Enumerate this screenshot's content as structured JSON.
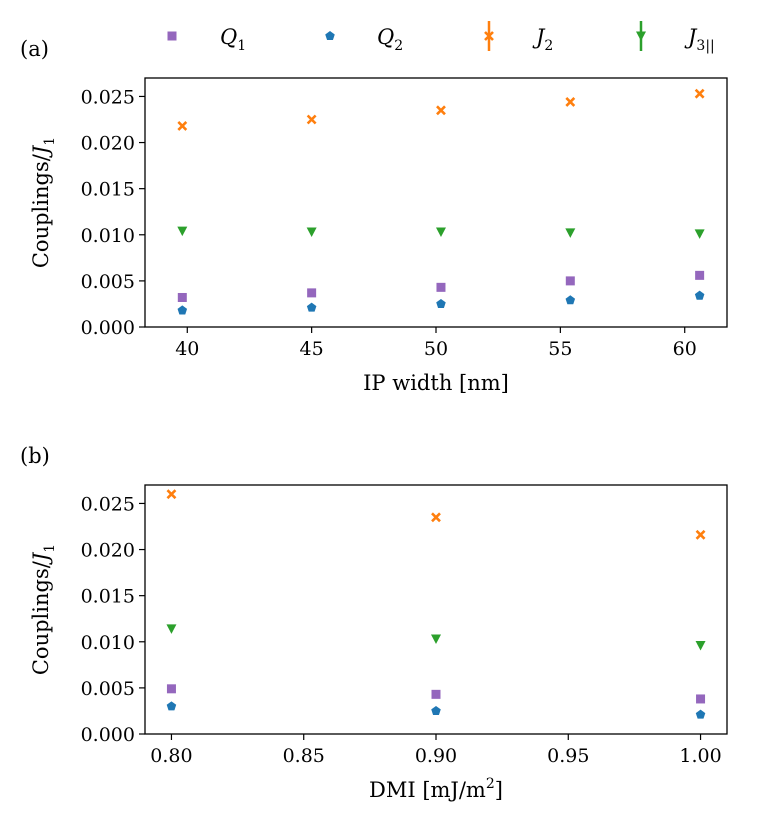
{
  "chart_data": [
    {
      "type": "scatter",
      "panel_label": "(a)",
      "xlabel": "IP width [nm]",
      "ylabel": "Couplings/J1",
      "xlim": [
        38.3,
        61.7
      ],
      "ylim": [
        0.0,
        0.027
      ],
      "xticks": [
        40,
        45,
        50,
        55,
        60
      ],
      "xtick_labels": [
        "40",
        "45",
        "50",
        "55",
        "60"
      ],
      "yticks": [
        0.0,
        0.005,
        0.01,
        0.015,
        0.02,
        0.025
      ],
      "ytick_labels": [
        "0.000",
        "0.005",
        "0.010",
        "0.015",
        "0.020",
        "0.025"
      ],
      "x": [
        39.8,
        45.0,
        50.2,
        55.4,
        60.6
      ],
      "series": [
        {
          "name": "Q1",
          "marker": "square",
          "color": "#9467bd",
          "values": [
            0.0032,
            0.0037,
            0.0043,
            0.005,
            0.0056
          ]
        },
        {
          "name": "Q2",
          "marker": "pentagon",
          "color": "#1f77b4",
          "values": [
            0.0018,
            0.0021,
            0.0025,
            0.0029,
            0.0034
          ]
        },
        {
          "name": "J2",
          "marker": "x",
          "color": "#ff7f0e",
          "values": [
            0.0218,
            0.0225,
            0.0235,
            0.0244,
            0.0253
          ]
        },
        {
          "name": "J3||",
          "marker": "triangle-down",
          "color": "#2ca02c",
          "values": [
            0.0104,
            0.0103,
            0.0103,
            0.0102,
            0.0101
          ]
        }
      ]
    },
    {
      "type": "scatter",
      "panel_label": "(b)",
      "xlabel": "DMI [mJ/m2]",
      "ylabel": "Couplings/J1",
      "xlim": [
        0.79,
        1.01
      ],
      "ylim": [
        0.0,
        0.027
      ],
      "xticks": [
        0.8,
        0.85,
        0.9,
        0.95,
        1.0
      ],
      "xtick_labels": [
        "0.80",
        "0.85",
        "0.90",
        "0.95",
        "1.00"
      ],
      "yticks": [
        0.0,
        0.005,
        0.01,
        0.015,
        0.02,
        0.025
      ],
      "ytick_labels": [
        "0.000",
        "0.005",
        "0.010",
        "0.015",
        "0.020",
        "0.025"
      ],
      "x": [
        0.8,
        0.9,
        1.0
      ],
      "series": [
        {
          "name": "Q1",
          "marker": "square",
          "color": "#9467bd",
          "values": [
            0.0049,
            0.0043,
            0.0038
          ]
        },
        {
          "name": "Q2",
          "marker": "pentagon",
          "color": "#1f77b4",
          "values": [
            0.003,
            0.0025,
            0.0021
          ]
        },
        {
          "name": "J2",
          "marker": "x",
          "color": "#ff7f0e",
          "values": [
            0.026,
            0.0235,
            0.0216
          ]
        },
        {
          "name": "J3||",
          "marker": "triangle-down",
          "color": "#2ca02c",
          "values": [
            0.0114,
            0.0103,
            0.0096
          ]
        }
      ]
    }
  ],
  "legend": {
    "placement": "top",
    "entries": [
      {
        "symbol": "Q",
        "sub": "1",
        "marker": "square",
        "color": "#9467bd"
      },
      {
        "symbol": "Q",
        "sub": "2",
        "marker": "pentagon",
        "color": "#1f77b4"
      },
      {
        "symbol": "J",
        "sub": "2",
        "marker": "x-errorbar",
        "color": "#ff7f0e"
      },
      {
        "symbol": "J",
        "sub": "3||",
        "marker": "triangle-errorbar",
        "color": "#2ca02c"
      }
    ]
  }
}
